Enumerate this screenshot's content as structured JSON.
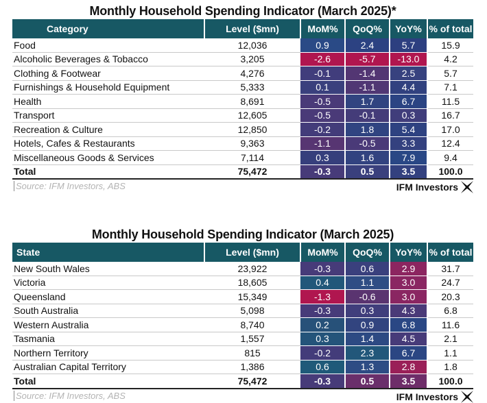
{
  "category_table": {
    "title": "Monthly Household Spending Indicator (March 2025)*",
    "headers": [
      "Category",
      "Level ($mn)",
      "MoM%",
      "QoQ%",
      "YoY%",
      "% of total"
    ],
    "rows": [
      {
        "name": "Food",
        "level": "12,036",
        "mom": "0.9",
        "qoq": "2.4",
        "yoy": "5.7",
        "pct": "15.9",
        "mom_color": "#2a4a86",
        "qoq_color": "#2c4282",
        "yoy_color": "#2d3f80"
      },
      {
        "name": "Alcoholic Beverages & Tobacco",
        "level": "3,205",
        "mom": "-2.6",
        "qoq": "-5.7",
        "yoy": "-13.0",
        "pct": "4.2",
        "mom_color": "#b0164f",
        "qoq_color": "#b0164f",
        "yoy_color": "#b0164f"
      },
      {
        "name": "Clothing & Footwear",
        "level": "4,276",
        "mom": "-0.1",
        "qoq": "-1.4",
        "yoy": "2.5",
        "pct": "5.7",
        "mom_color": "#413d7c",
        "qoq_color": "#533673",
        "yoy_color": "#37427f"
      },
      {
        "name": "Furnishings & Household Equipment",
        "level": "5,333",
        "mom": "0.1",
        "qoq": "-1.1",
        "yoy": "4.4",
        "pct": "7.1",
        "mom_color": "#3a407d",
        "qoq_color": "#503774",
        "yoy_color": "#31417f"
      },
      {
        "name": "Health",
        "level": "8,691",
        "mom": "-0.5",
        "qoq": "1.7",
        "yoy": "6.7",
        "pct": "11.5",
        "mom_color": "#4a3a78",
        "qoq_color": "#314480",
        "yoy_color": "#2b4483"
      },
      {
        "name": "Transport",
        "level": "12,605",
        "mom": "-0.5",
        "qoq": "-0.1",
        "yoy": "0.3",
        "pct": "16.7",
        "mom_color": "#4a3a78",
        "qoq_color": "#443c79",
        "yoy_color": "#403d7b"
      },
      {
        "name": "Recreation & Culture",
        "level": "12,850",
        "mom": "-0.2",
        "qoq": "1.8",
        "yoy": "5.4",
        "pct": "17.0",
        "mom_color": "#433c7a",
        "qoq_color": "#304481",
        "yoy_color": "#2e4281"
      },
      {
        "name": "Hotels, Cafes & Restaurants",
        "level": "9,363",
        "mom": "-1.1",
        "qoq": "-0.5",
        "yoy": "3.3",
        "pct": "12.4",
        "mom_color": "#573572",
        "qoq_color": "#4a3a78",
        "yoy_color": "#34417f"
      },
      {
        "name": "Miscellaneous Goods & Services",
        "level": "7,114",
        "mom": "0.3",
        "qoq": "1.6",
        "yoy": "7.9",
        "pct": "9.4",
        "mom_color": "#363f7c",
        "qoq_color": "#324380",
        "yoy_color": "#294785"
      }
    ],
    "total": {
      "name": "Total",
      "level": "75,472",
      "mom": "-0.3",
      "qoq": "0.5",
      "yoy": "3.5",
      "pct": "100.0",
      "mom_color": "#473b79",
      "qoq_color": "#3a407d",
      "yoy_color": "#33417f"
    },
    "source": "Source: IFM Investors, ABS",
    "logo_text": "IFM Investors"
  },
  "state_table": {
    "title": "Monthly Household Spending Indicator (March 2025)",
    "headers": [
      "State",
      "Level ($mn)",
      "MoM%",
      "QoQ%",
      "YoY%",
      "% of total"
    ],
    "rows": [
      {
        "name": "New South Wales",
        "level": "23,922",
        "mom": "-0.3",
        "qoq": "0.6",
        "yoy": "2.9",
        "pct": "31.7",
        "mom_color": "#473b79",
        "qoq_color": "#3a407d",
        "yoy_color": "#8c2560"
      },
      {
        "name": "Victoria",
        "level": "18,605",
        "mom": "0.4",
        "qoq": "1.1",
        "yoy": "3.0",
        "pct": "24.7",
        "mom_color": "#22577a",
        "qoq_color": "#2f4d84",
        "yoy_color": "#8a2662"
      },
      {
        "name": "Queensland",
        "level": "15,349",
        "mom": "-1.3",
        "qoq": "-0.6",
        "yoy": "3.0",
        "pct": "20.3",
        "mom_color": "#b0164f",
        "qoq_color": "#5a3470",
        "yoy_color": "#8a2662"
      },
      {
        "name": "South Australia",
        "level": "5,098",
        "mom": "-0.3",
        "qoq": "0.3",
        "yoy": "4.3",
        "pct": "6.8",
        "mom_color": "#473b79",
        "qoq_color": "#403e7c",
        "yoy_color": "#4a3a78"
      },
      {
        "name": "Western Australia",
        "level": "8,740",
        "mom": "0.2",
        "qoq": "0.9",
        "yoy": "6.8",
        "pct": "11.6",
        "mom_color": "#275179",
        "qoq_color": "#32447f",
        "yoy_color": "#2a4784"
      },
      {
        "name": "Tasmania",
        "level": "1,557",
        "mom": "0.3",
        "qoq": "1.4",
        "yoy": "4.5",
        "pct": "2.1",
        "mom_color": "#24547a",
        "qoq_color": "#2d4a83",
        "yoy_color": "#473b79"
      },
      {
        "name": "Northern Territory",
        "level": "815",
        "mom": "-0.2",
        "qoq": "2.3",
        "yoy": "6.7",
        "pct": "1.1",
        "mom_color": "#433c7a",
        "qoq_color": "#22577a",
        "yoy_color": "#2b4683"
      },
      {
        "name": "Australian Capital Territory",
        "level": "1,386",
        "mom": "0.6",
        "qoq": "1.3",
        "yoy": "2.8",
        "pct": "1.8",
        "mom_color": "#1f5a79",
        "qoq_color": "#2e4c84",
        "yoy_color": "#9a2058"
      }
    ],
    "total": {
      "name": "Total",
      "level": "75,472",
      "mom": "-0.3",
      "qoq": "0.5",
      "yoy": "3.5",
      "pct": "100.0",
      "mom_color": "#473b79",
      "qoq_color": "#6a2f6b",
      "yoy_color": "#6e2d69"
    },
    "source": "Source: IFM Investors, ABS",
    "logo_text": "IFM Investors"
  }
}
